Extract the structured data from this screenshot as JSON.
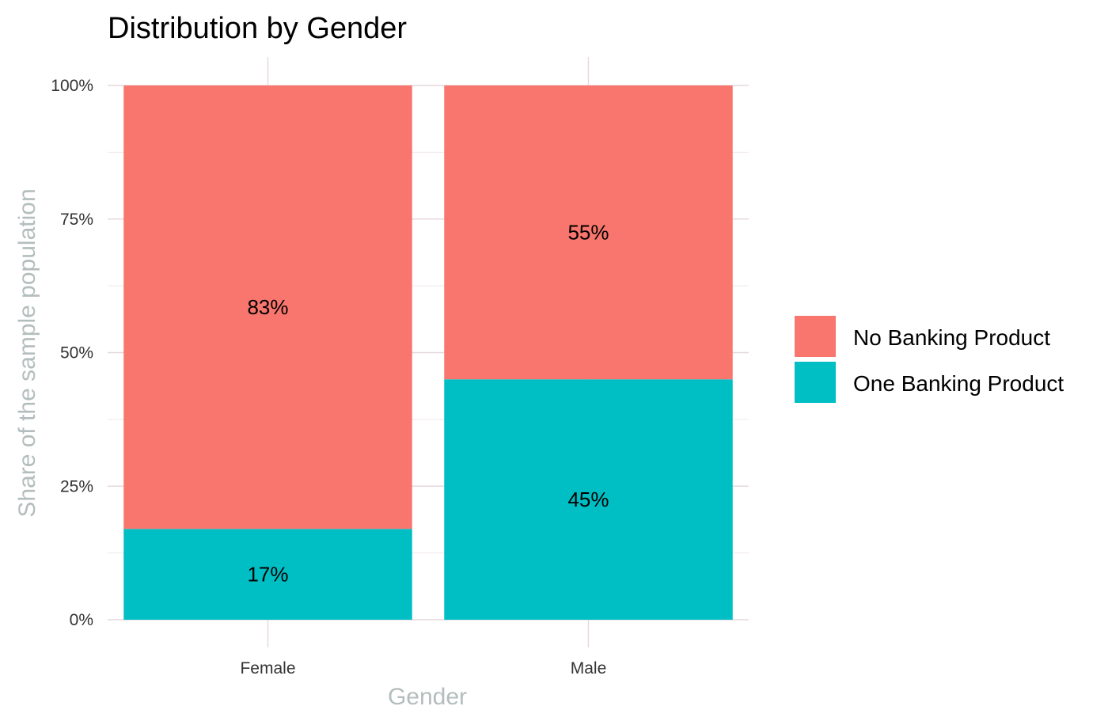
{
  "chart_data": {
    "type": "bar",
    "stacked": true,
    "title": "Distribution by Gender",
    "xlabel": "Gender",
    "ylabel": "Share of the sample population",
    "categories": [
      "Female",
      "Male"
    ],
    "ylim": [
      0,
      1
    ],
    "yticks": [
      0,
      0.25,
      0.5,
      0.75,
      1
    ],
    "ytick_labels": [
      "0%",
      "25%",
      "50%",
      "75%",
      "100%"
    ],
    "grid": true,
    "legend_position": "right",
    "series": [
      {
        "name": "One Banking Product",
        "values": [
          0.17,
          0.45
        ],
        "labels": [
          "17%",
          "45%"
        ],
        "color": "#00bfc4"
      },
      {
        "name": "No Banking Product",
        "values": [
          0.83,
          0.55
        ],
        "labels": [
          "83%",
          "55%"
        ],
        "color": "#f8766d"
      }
    ],
    "legend_order": [
      "No Banking Product",
      "One Banking Product"
    ]
  }
}
